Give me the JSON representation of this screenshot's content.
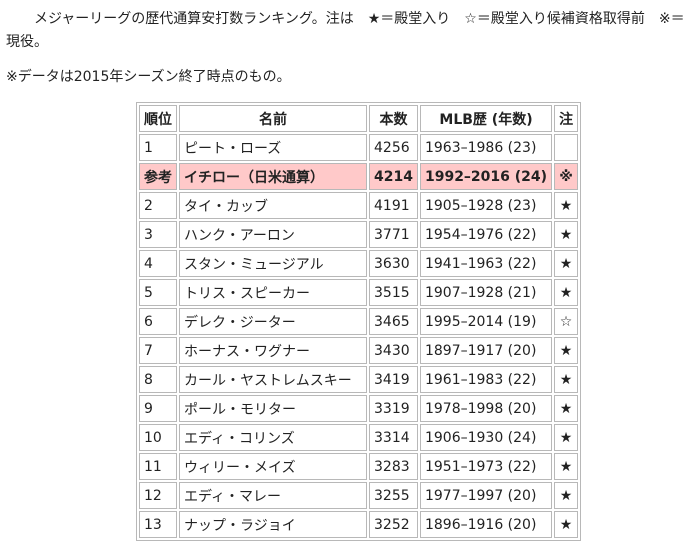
{
  "intro": {
    "text": "メジャーリーグの歴代通算安打数ランキング。注は　★＝殿堂入り　☆＝殿堂入り候補資格取得前　※＝現役。"
  },
  "note": {
    "text": "※データは2015年シーズン終了時点のもの。"
  },
  "table": {
    "headers": {
      "rank": "順位",
      "name": "名前",
      "hits": "本数",
      "mlb": "MLB歴 (年数)",
      "note": "注"
    },
    "rows": [
      {
        "rank": "1",
        "name": "ピート・ローズ",
        "hits": "4256",
        "mlb": "1963–1986 (23)",
        "note": ""
      },
      {
        "rank": "参考",
        "name": "イチロー（日米通算）",
        "hits": "4214",
        "mlb": "1992–2016 (24)",
        "note": "※",
        "highlight": true
      },
      {
        "rank": "2",
        "name": "タイ・カッブ",
        "hits": "4191",
        "mlb": "1905–1928 (23)",
        "note": "★"
      },
      {
        "rank": "3",
        "name": "ハンク・アーロン",
        "hits": "3771",
        "mlb": "1954–1976 (22)",
        "note": "★"
      },
      {
        "rank": "4",
        "name": "スタン・ミュージアル",
        "hits": "3630",
        "mlb": "1941–1963 (22)",
        "note": "★"
      },
      {
        "rank": "5",
        "name": "トリス・スピーカー",
        "hits": "3515",
        "mlb": "1907–1928 (21)",
        "note": "★"
      },
      {
        "rank": "6",
        "name": "デレク・ジーター",
        "hits": "3465",
        "mlb": "1995–2014 (19)",
        "note": "☆"
      },
      {
        "rank": "7",
        "name": "ホーナス・ワグナー",
        "hits": "3430",
        "mlb": "1897–1917 (20)",
        "note": "★"
      },
      {
        "rank": "8",
        "name": "カール・ヤストレムスキー",
        "hits": "3419",
        "mlb": "1961–1983 (22)",
        "note": "★"
      },
      {
        "rank": "9",
        "name": "ポール・モリター",
        "hits": "3319",
        "mlb": "1978–1998 (20)",
        "note": "★"
      },
      {
        "rank": "10",
        "name": "エディ・コリンズ",
        "hits": "3314",
        "mlb": "1906–1930 (24)",
        "note": "★"
      },
      {
        "rank": "11",
        "name": "ウィリー・メイズ",
        "hits": "3283",
        "mlb": "1951–1973 (22)",
        "note": "★"
      },
      {
        "rank": "12",
        "name": "エディ・マレー",
        "hits": "3255",
        "mlb": "1977–1997 (20)",
        "note": "★"
      },
      {
        "rank": "13",
        "name": "ナップ・ラジョイ",
        "hits": "3252",
        "mlb": "1896–1916 (20)",
        "note": "★"
      }
    ]
  },
  "colors": {
    "highlight_row": "#ffc9c9",
    "border": "#b8b8b8"
  }
}
